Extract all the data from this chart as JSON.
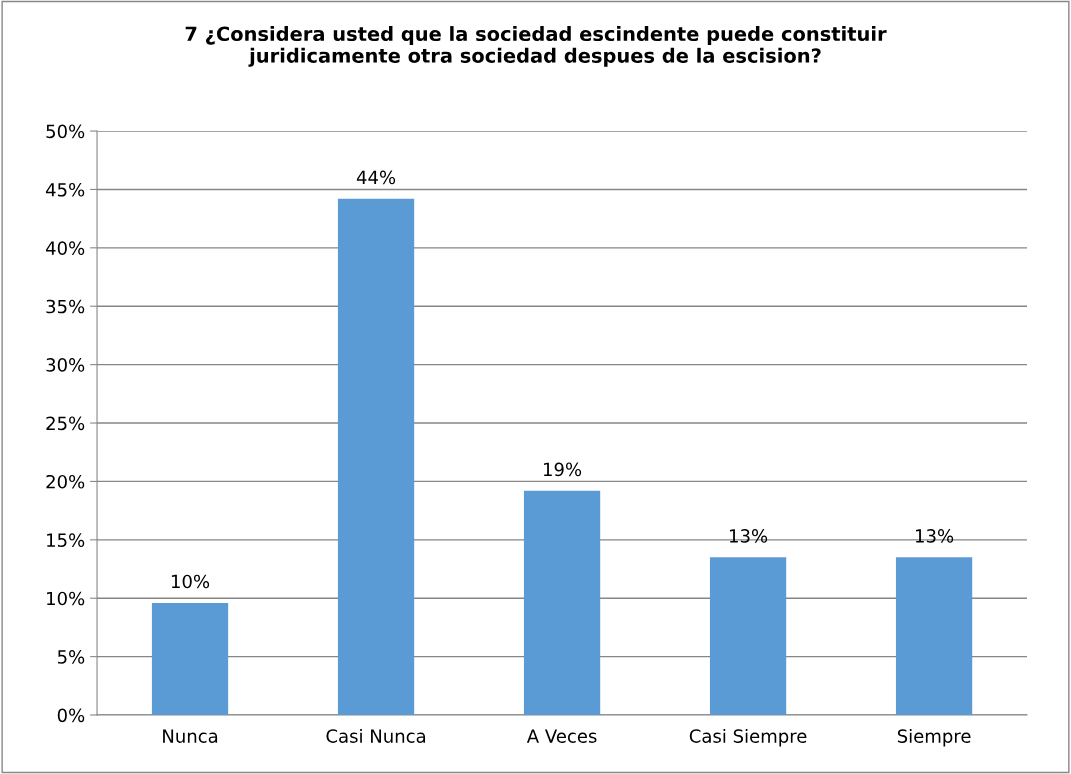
{
  "chart_data": {
    "type": "bar",
    "title": "7 ¿Considera usted que la sociedad escindente puede constituir\njuridicamente otra sociedad despues de la escision?",
    "categories": [
      "Nunca",
      "Casi Nunca",
      "A Veces",
      "Casi Siempre",
      "Siempre"
    ],
    "values": [
      9.6,
      44.2,
      19.2,
      13.5,
      13.5
    ],
    "value_labels": [
      "10%",
      "44%",
      "19%",
      "13%",
      "13%"
    ],
    "color": "#5b9bd5",
    "ylim": [
      0,
      50
    ],
    "yticks": [
      {
        "value": 0,
        "label": "0%"
      },
      {
        "value": 5,
        "label": "5%"
      },
      {
        "value": 10,
        "label": "10%"
      },
      {
        "value": 15,
        "label": "15%"
      },
      {
        "value": 20,
        "label": "20%"
      },
      {
        "value": 25,
        "label": "25%"
      },
      {
        "value": 30,
        "label": "30%"
      },
      {
        "value": 35,
        "label": "35%"
      },
      {
        "value": 40,
        "label": "40%"
      },
      {
        "value": 45,
        "label": "45%"
      },
      {
        "value": 50,
        "label": "50%"
      }
    ],
    "grid": "y",
    "legend": false
  }
}
